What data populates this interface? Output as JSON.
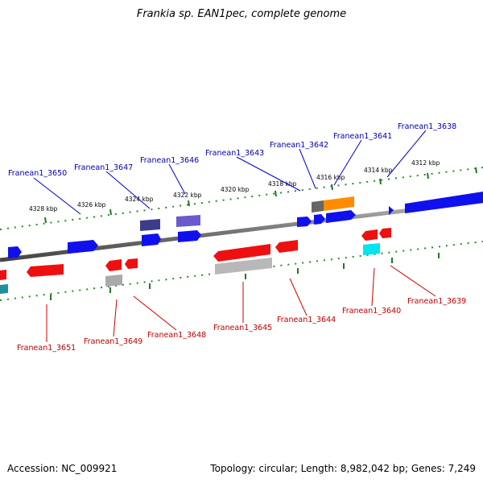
{
  "title": "Frankia sp. EAN1pec, complete genome",
  "footer": {
    "accession": "Accession: NC_009921",
    "summary": "Topology: circular; Length: 8,982,042 bp; Genes: 7,249"
  },
  "colors": {
    "forward_gene": "#0a0aee",
    "reverse_gene": "#ee1010",
    "forward_label": "#0000aa",
    "reverse_label": "#bb0000",
    "tick": "#1f7a1f",
    "backbone": "#777777"
  },
  "scale_ticks": [
    "4328 kbp",
    "4326 kbp",
    "4324 kbp",
    "4322 kbp",
    "4320 kbp",
    "4318 kbp",
    "4316 kbp",
    "4314 kbp",
    "4312 kbp"
  ],
  "forward_labels": [
    "Franean1_3650",
    "Franean1_3647",
    "Franean1_3646",
    "Franean1_3643",
    "Franean1_3642",
    "Franean1_3641",
    "Franean1_3638"
  ],
  "reverse_labels": [
    "Franean1_3651",
    "Franean1_3649",
    "Franean1_3648",
    "Franean1_3645",
    "Franean1_3644",
    "Franean1_3640",
    "Franean1_3639"
  ]
}
